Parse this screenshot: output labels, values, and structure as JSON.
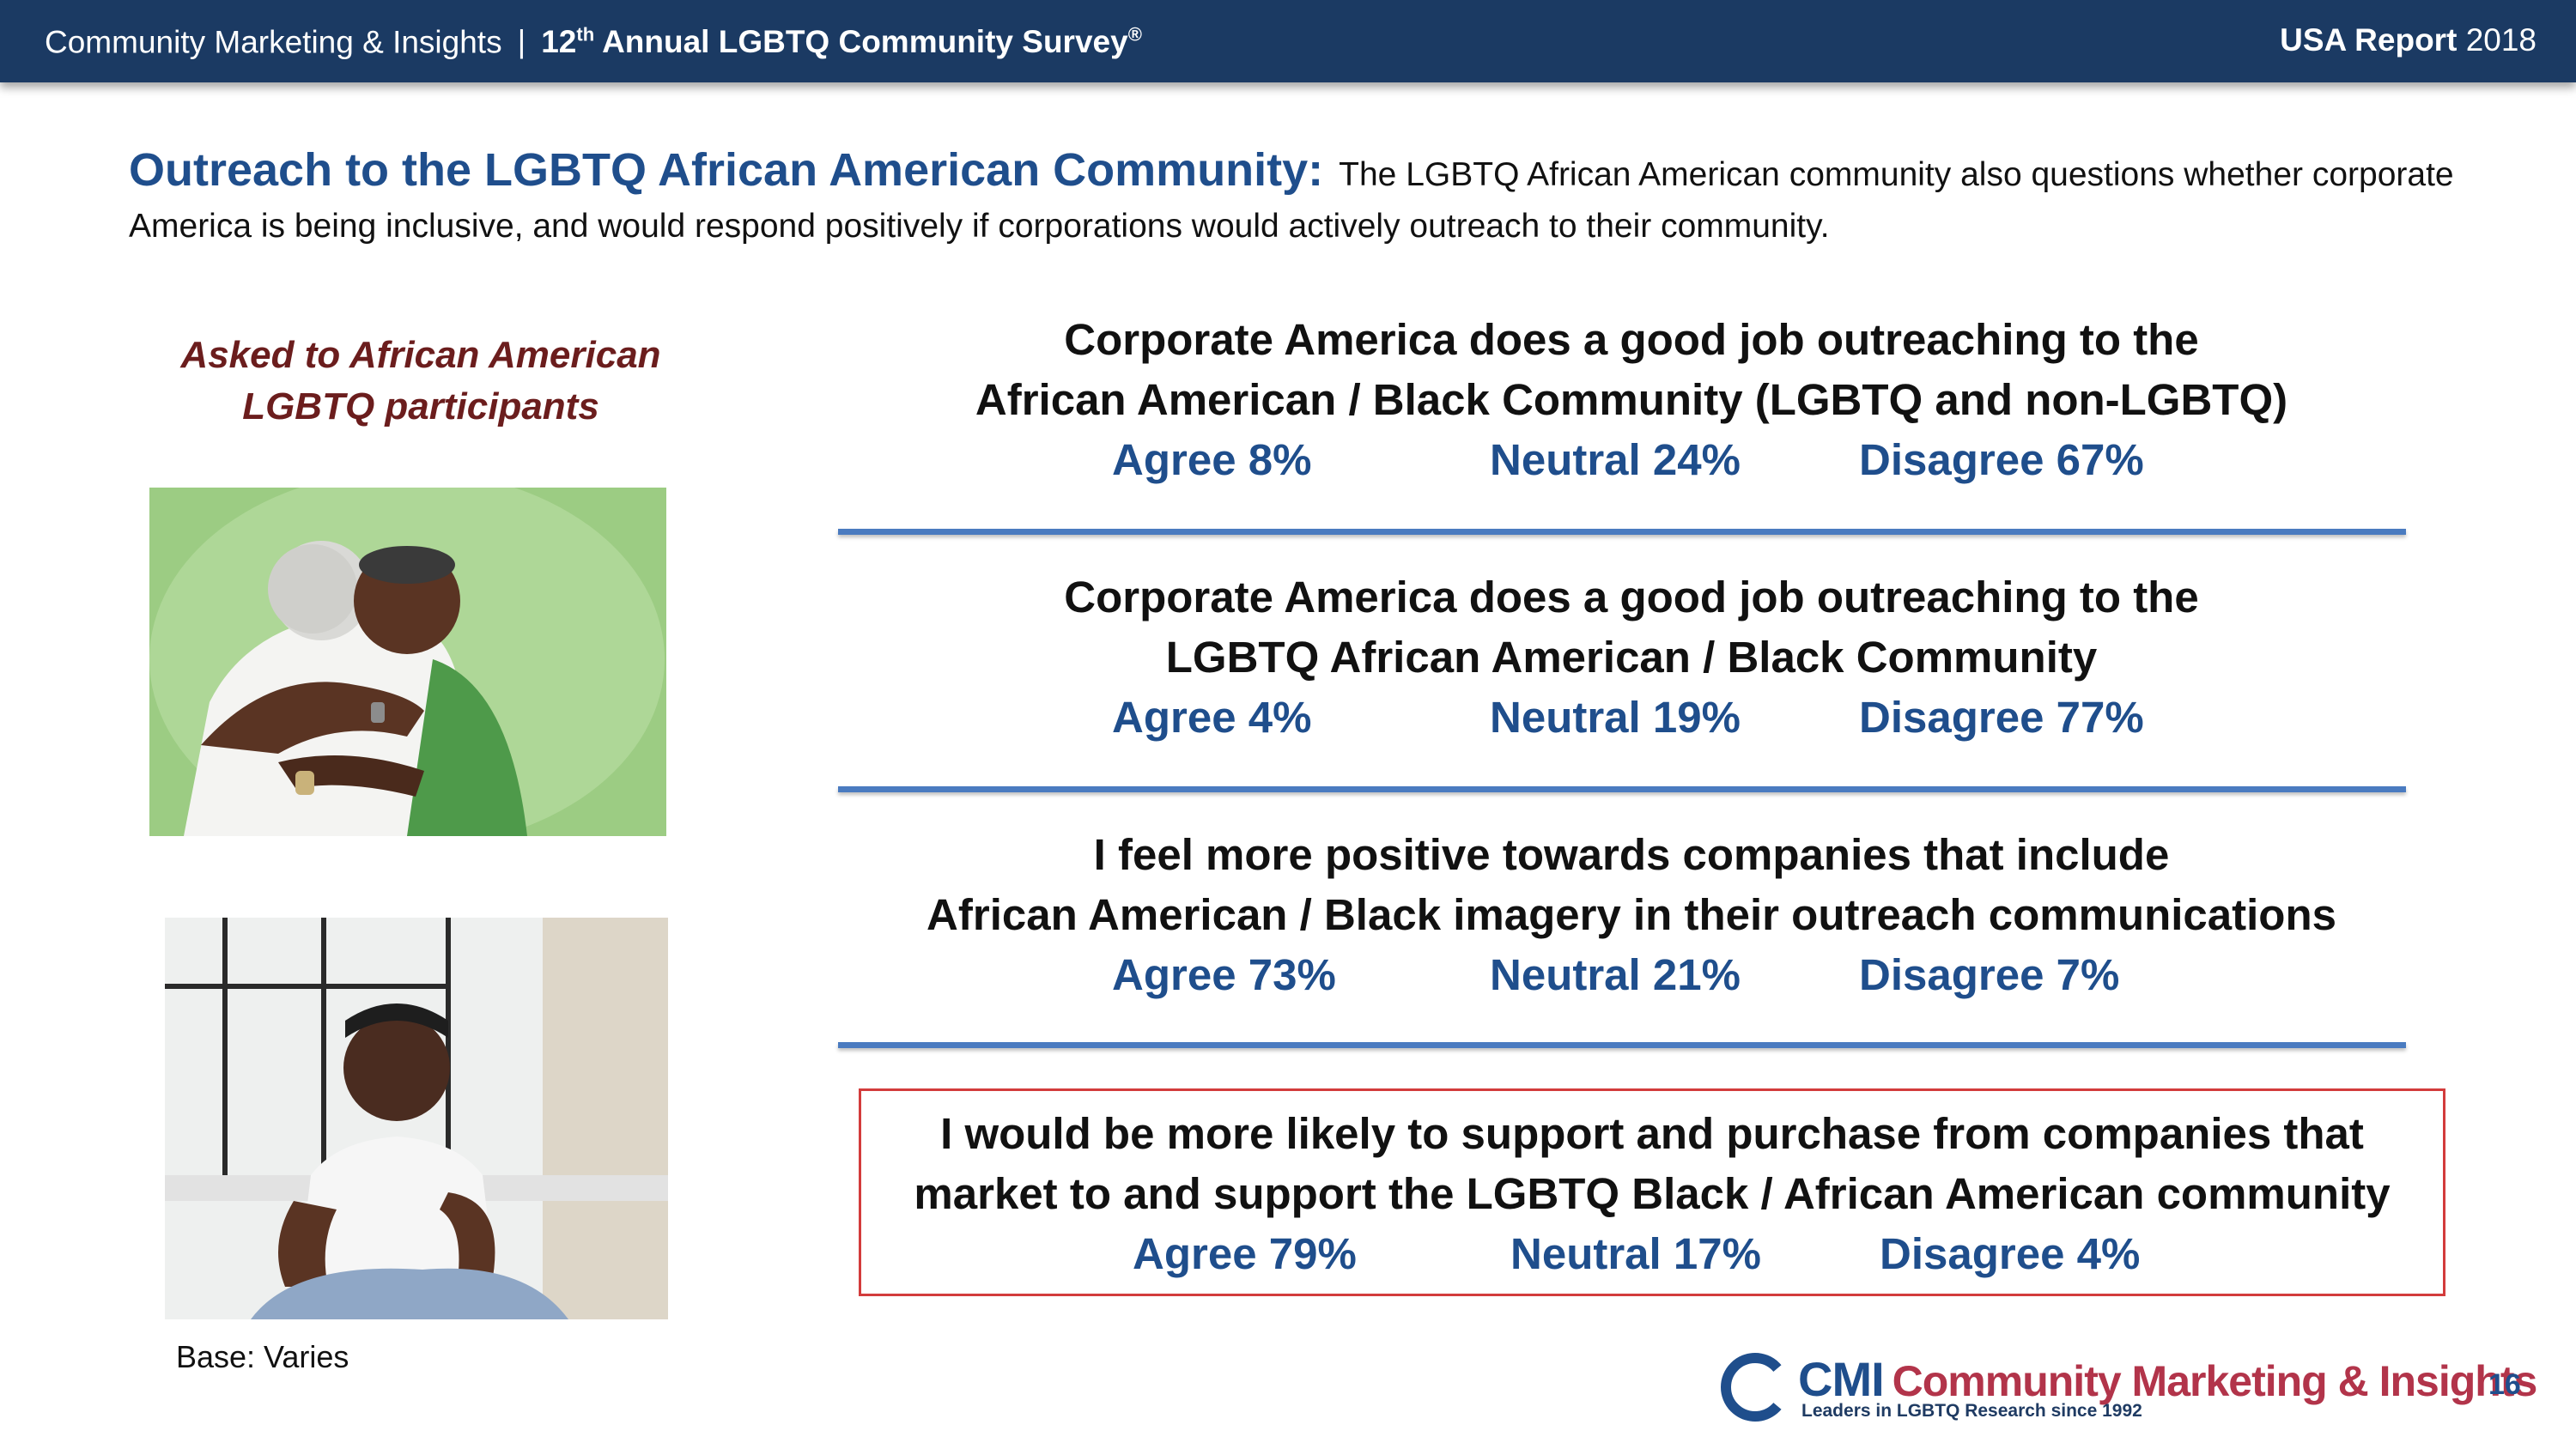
{
  "header": {
    "org": "Community Marketing & Insights",
    "separator": "|",
    "survey_prefix": "12",
    "survey_sup": "th",
    "survey_title": "Annual LGBTQ Community Survey",
    "survey_reg": "®",
    "report_label": "USA Report",
    "report_year": "2018"
  },
  "heading": {
    "title": "Outreach to the LGBTQ African American Community:",
    "text": "The LGBTQ African American community also questions whether corporate America is being inclusive, and would respond positively if corporations would actively outreach to their community."
  },
  "left": {
    "asked_line1": "Asked to African American",
    "asked_line2": "LGBTQ participants",
    "base": "Base: Varies"
  },
  "statements": [
    {
      "line1": "Corporate America does a good job outreaching to the",
      "line2": "African American / Black Community  (LGBTQ and non-LGBTQ)",
      "agree": "Agree 8%",
      "neutral": "Neutral 24%",
      "disagree": "Disagree  67%"
    },
    {
      "line1": "Corporate America does a good job outreaching to the",
      "line2": "LGBTQ African American / Black Community",
      "agree": "Agree 4%",
      "neutral": "Neutral 19%",
      "disagree": "Disagree  77%"
    },
    {
      "line1": "I feel more positive towards companies that include",
      "line2": "African American / Black imagery in their outreach communications",
      "agree": "Agree 73%",
      "neutral": "Neutral 21%",
      "disagree": "Disagree  7%"
    },
    {
      "line1": "I would be more likely to support and purchase from companies that",
      "line2": "market to and support the LGBTQ  Black / African American community",
      "agree": "Agree 79%",
      "neutral": "Neutral 17%",
      "disagree": "Disagree  4%"
    }
  ],
  "footer": {
    "logo_abbr": "CMI",
    "logo_name": "Community Marketing & Insights",
    "logo_tagline": "Leaders in LGBTQ Research since 1992",
    "page_number": "16"
  },
  "colors": {
    "header_bg": "#1b3a63",
    "title_blue": "#1f4e8c",
    "asked_red": "#6b1d1d",
    "rule_blue": "#4a7bc0",
    "highlight_border": "#d33c3c",
    "logo_red": "#b2344a"
  }
}
